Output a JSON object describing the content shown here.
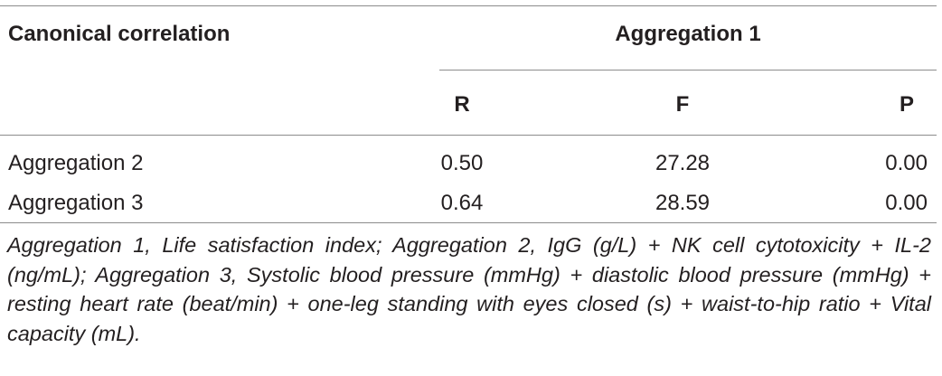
{
  "table": {
    "stub_header": "Canonical correlation",
    "group_header": "Aggregation 1",
    "columns": [
      "R",
      "F",
      "P"
    ],
    "rows": [
      {
        "label": "Aggregation 2",
        "R": "0.50",
        "F": "27.28",
        "P": "0.00"
      },
      {
        "label": "Aggregation 3",
        "R": "0.64",
        "F": "28.59",
        "P": "0.00"
      }
    ]
  },
  "footnote": "Aggregation 1, Life satisfaction index; Aggregation 2, IgG (g/L) + NK cell cytotoxicity + IL-2 (ng/mL); Aggregation 3, Systolic blood pressure (mmHg) + diastolic blood pressure (mmHg) + resting heart rate (beat/min) + one-leg standing with eyes closed (s) + waist-to-hip ratio + Vital capacity (mL)."
}
